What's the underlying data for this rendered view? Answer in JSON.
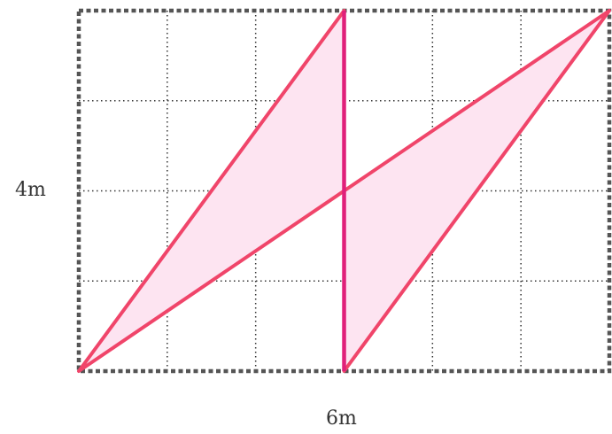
{
  "labels": {
    "height": "4m",
    "width": "6m"
  },
  "grid": {
    "columns": 6,
    "rows": 4
  },
  "colors": {
    "background": "#ffffff",
    "grid_line": "#333333",
    "border": "#555555",
    "shape_stroke": "#f0456a",
    "shape_fill": "#fde4f1",
    "center_line": "#e0207a",
    "label_text": "#333333"
  },
  "shapes": {
    "left_triangle": [
      [
        0,
        0
      ],
      [
        3,
        4
      ],
      [
        3,
        2
      ]
    ],
    "right_triangle": [
      [
        3,
        0
      ],
      [
        3,
        2
      ],
      [
        6,
        4
      ]
    ],
    "center_line": [
      [
        3,
        0
      ],
      [
        3,
        4
      ]
    ]
  }
}
